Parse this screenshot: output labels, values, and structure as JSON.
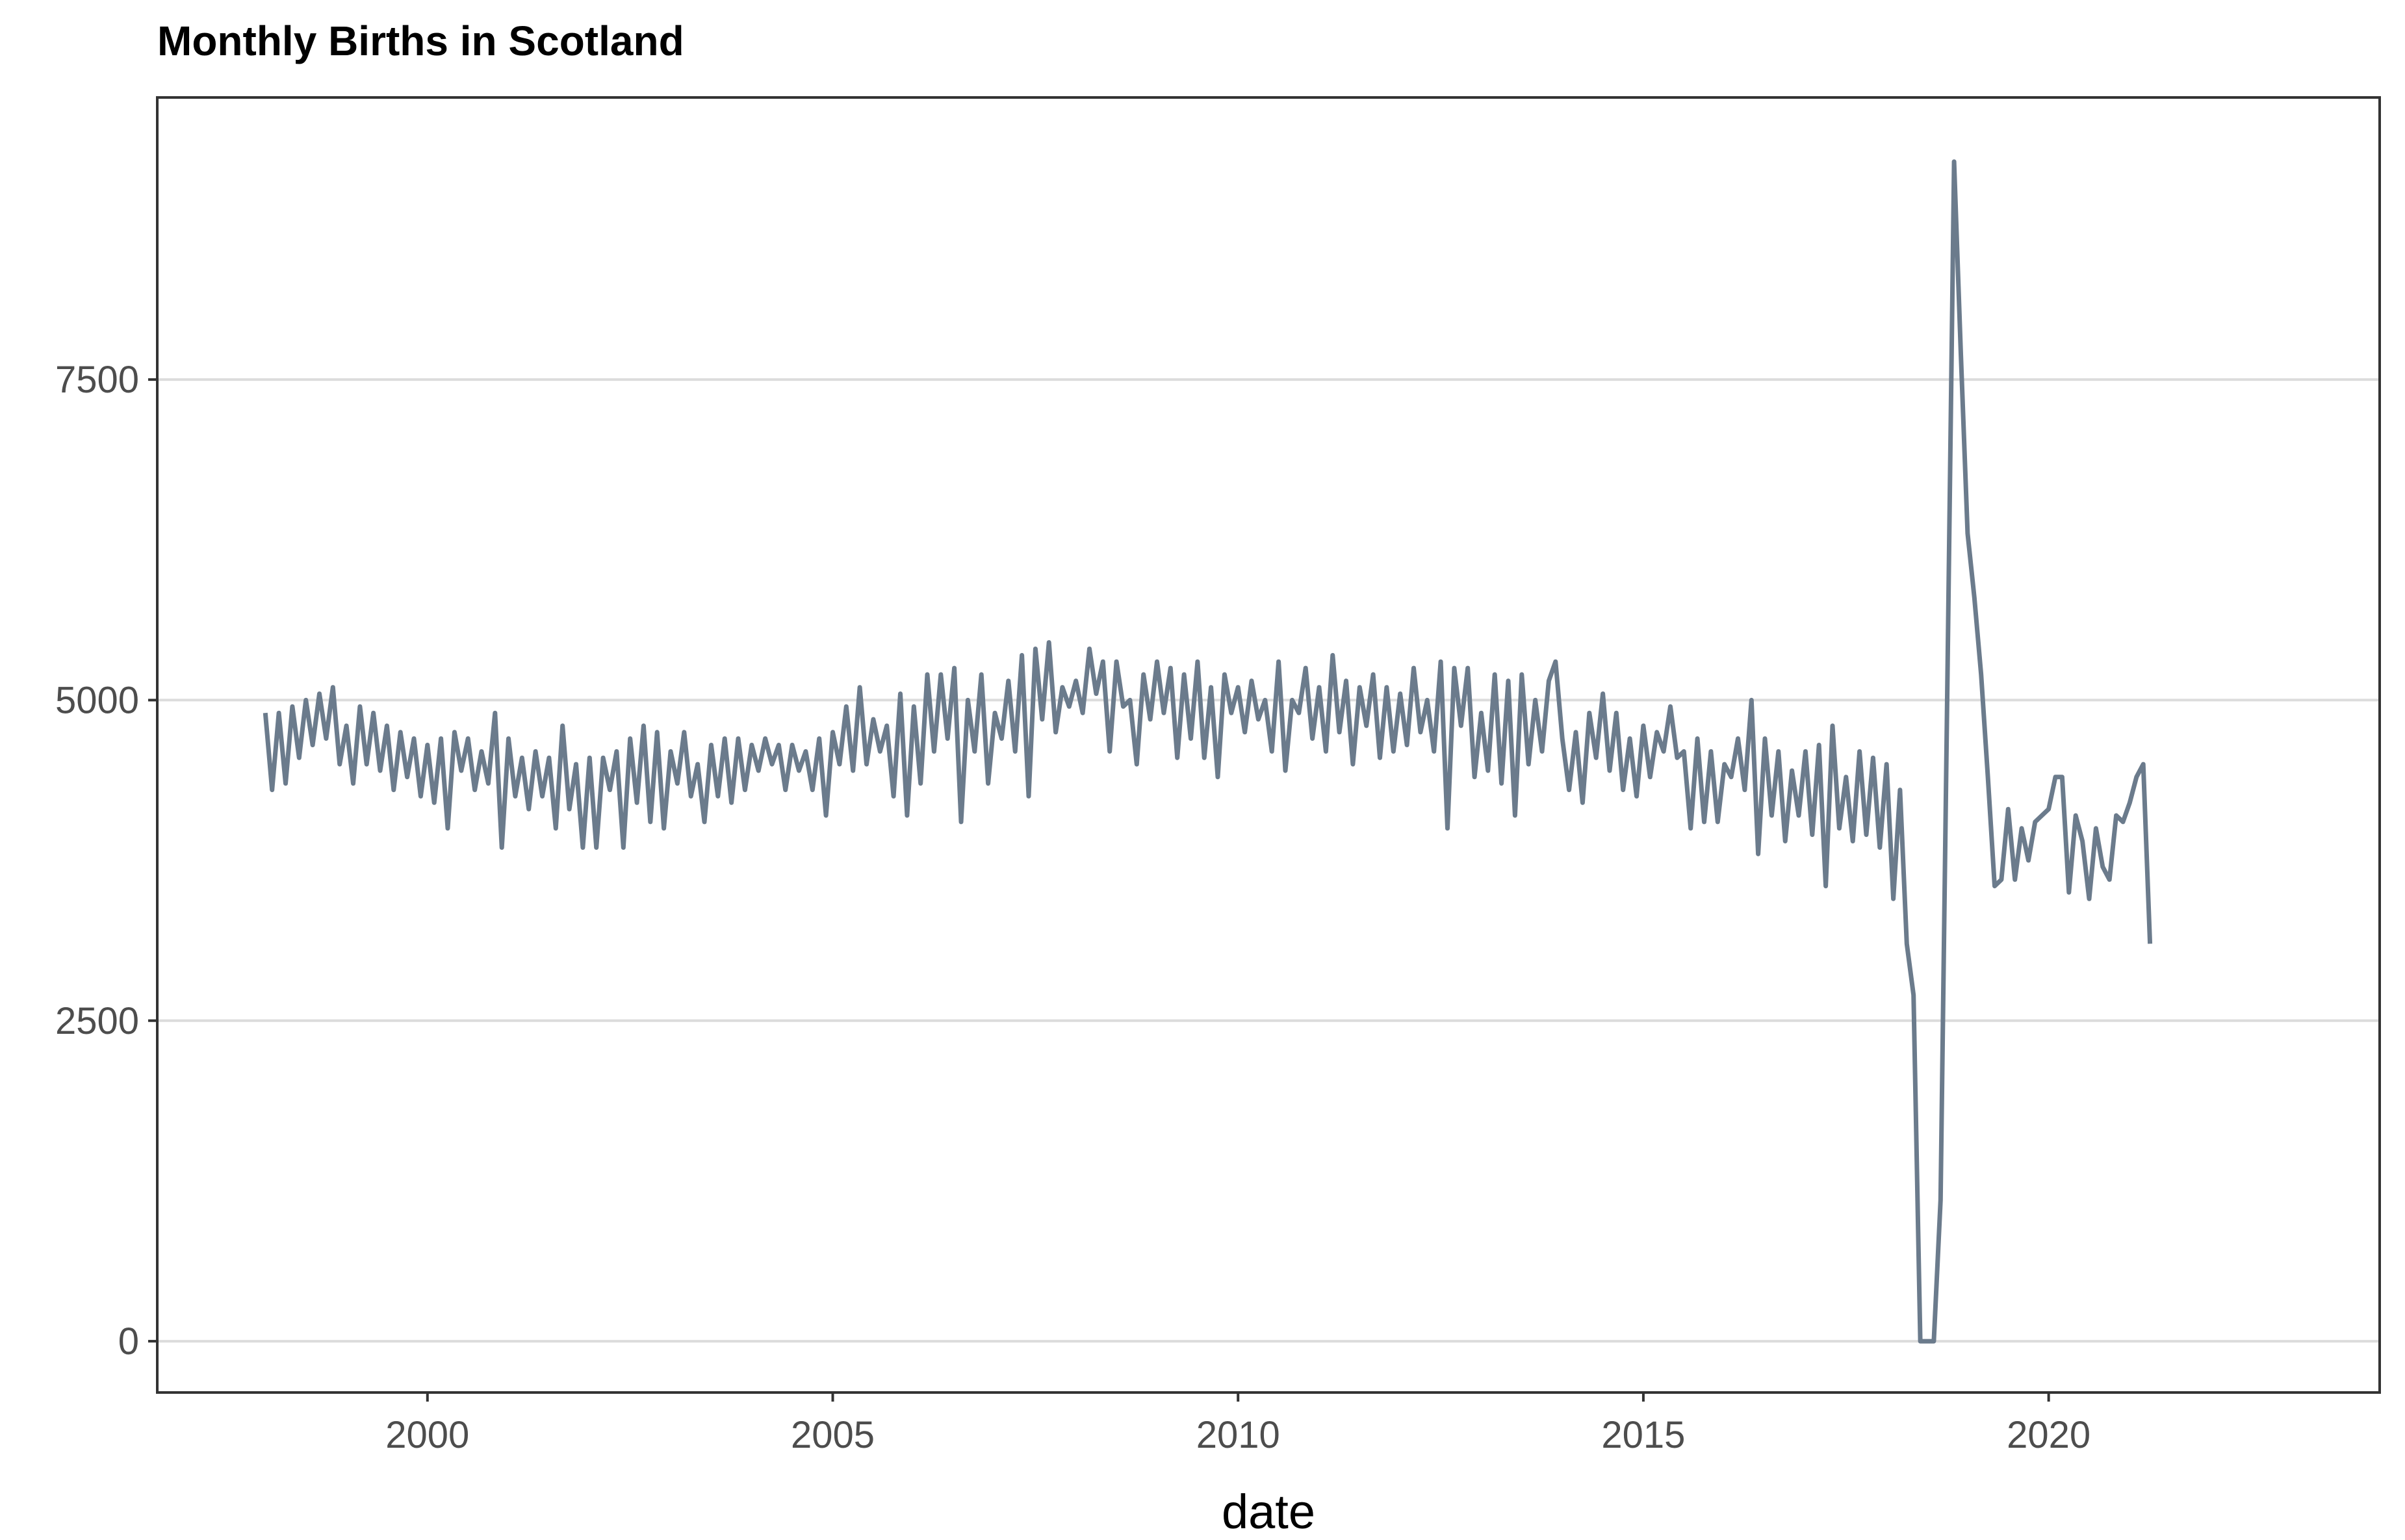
{
  "chart_data": {
    "type": "line",
    "title": "Monthly Births in Scotland",
    "xlabel": "date",
    "ylabel": "",
    "x_ticks": [
      "2000",
      "2005",
      "2010",
      "2015",
      "2020"
    ],
    "y_ticks": [
      "0",
      "2500",
      "5000",
      "7500"
    ],
    "xlim": [
      "1996-09-01",
      "2024-02-01"
    ],
    "ylim": [
      -400,
      9700
    ],
    "grid": "horizontal major lines",
    "legend": "none",
    "line_color": "#6b7b8c",
    "series": [
      {
        "start": "1998-01",
        "frequency": "monthly",
        "values": [
          4900,
          4300,
          4900,
          4350,
          4950,
          4550,
          5000,
          4650,
          5050,
          4700,
          5100,
          4500,
          4800,
          4350,
          4950,
          4500,
          4900,
          4450,
          4800,
          4300,
          4750,
          4400,
          4700,
          4250,
          4650,
          4200,
          4700,
          4000,
          4750,
          4450,
          4700,
          4300,
          4600,
          4350,
          4900,
          3850,
          4700,
          4250,
          4550,
          4150,
          4600,
          4250,
          4550,
          4000,
          4800,
          4150,
          4500,
          3850,
          4550,
          3850,
          4550,
          4300,
          4600,
          3850,
          4700,
          4200,
          4800,
          4050,
          4750,
          4000,
          4600,
          4350,
          4750,
          4250,
          4500,
          4050,
          4650,
          4250,
          4700,
          4200,
          4700,
          4300,
          4650,
          4450,
          4700,
          4500,
          4650,
          4300,
          4650,
          4450,
          4600,
          4300,
          4700,
          4100,
          4750,
          4500,
          4950,
          4450,
          5100,
          4500,
          4850,
          4600,
          4800,
          4250,
          5050,
          4100,
          4950,
          4350,
          5200,
          4600,
          5200,
          4700,
          5250,
          4050,
          5000,
          4600,
          5200,
          4350,
          4900,
          4700,
          5150,
          4600,
          5350,
          4250,
          5400,
          4850,
          5450,
          4750,
          5100,
          4950,
          5150,
          4900,
          5400,
          5050,
          5300,
          4600,
          5300,
          4950,
          5000,
          4500,
          5200,
          4850,
          5300,
          4900,
          5250,
          4550,
          5200,
          4700,
          5300,
          4550,
          5100,
          4400,
          5200,
          4900,
          5100,
          4750,
          5150,
          4850,
          5000,
          4600,
          5300,
          4450,
          5000,
          4900,
          5250,
          4700,
          5100,
          4600,
          5350,
          4750,
          5150,
          4500,
          5100,
          4800,
          5200,
          4550,
          5100,
          4600,
          5050,
          4650,
          5250,
          4750,
          5000,
          4600,
          5300,
          4000,
          5250,
          4800,
          5250,
          4400,
          4900,
          4450,
          5200,
          4350,
          5150,
          4100,
          5200,
          4500,
          5000,
          4600,
          5150,
          5300,
          4700,
          4300,
          4750,
          4200,
          4900,
          4550,
          5050,
          4450,
          4900,
          4300,
          4700,
          4250,
          4800,
          4400,
          4750,
          4600,
          4950,
          4550,
          4600,
          4000,
          4700,
          4050,
          4600,
          4050,
          4500,
          4400,
          4700,
          4300,
          5000,
          3800,
          4700,
          4100,
          4600,
          3900,
          4450,
          4100,
          4600,
          3950,
          4650,
          3550,
          4800,
          4000,
          4400,
          3900,
          4600,
          3950,
          4550,
          3850,
          4500,
          3450,
          4300,
          3100,
          2700,
          0,
          0,
          0,
          1100,
          5100,
          9200,
          7700,
          6300,
          5800,
          5200,
          4400,
          3550,
          3600,
          4150,
          3600,
          4000,
          3750,
          4050,
          4100,
          4150,
          4400,
          4400,
          3500,
          4100,
          3900,
          3450,
          4000,
          3700,
          3600,
          4100,
          4050,
          4200,
          4400,
          4500,
          3100
        ]
      }
    ]
  }
}
